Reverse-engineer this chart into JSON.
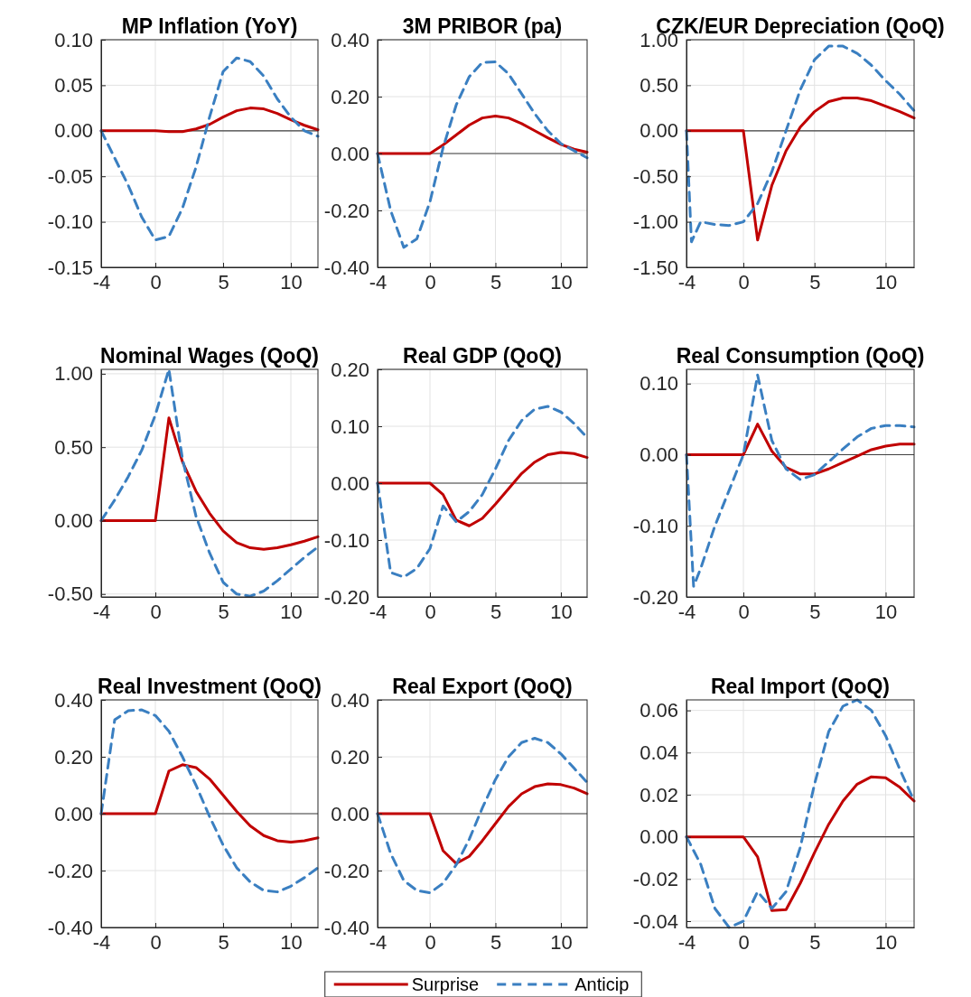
{
  "chart_data": [
    {
      "type": "line",
      "title": "MP Inflation (YoY)",
      "x": [
        -4,
        -3,
        -2,
        -1,
        0,
        1,
        2,
        3,
        4,
        5,
        6,
        7,
        8,
        9,
        10,
        11,
        12
      ],
      "xlim": [
        -4,
        12
      ],
      "xticks": [
        -4,
        0,
        5,
        10
      ],
      "ylim": [
        -0.15,
        0.1
      ],
      "yticks": [
        {
          "value": -0.15,
          "label": "-0.15"
        },
        {
          "value": -0.1,
          "label": "-0.10"
        },
        {
          "value": -0.05,
          "label": "-0.05"
        },
        {
          "value": 0,
          "label": "0.00"
        },
        {
          "value": 0.05,
          "label": "0.05"
        },
        {
          "value": 0.1,
          "label": "0.10"
        }
      ],
      "grid": true,
      "ref_lines": [
        {
          "axis": "y",
          "value": 0,
          "color": "#404040"
        }
      ],
      "series": [
        {
          "color": "#c00000",
          "line_style": "solid",
          "values": [
            0,
            0,
            0,
            0,
            0,
            -0.001,
            -0.001,
            0.002,
            0.007,
            0.015,
            0.022,
            0.025,
            0.024,
            0.019,
            0.012,
            0.006,
            0.001
          ]
        },
        {
          "color": "#3a7fc1",
          "line_style": "dashed",
          "values": [
            0,
            -0.03,
            -0.06,
            -0.095,
            -0.12,
            -0.116,
            -0.085,
            -0.04,
            0.015,
            0.065,
            0.08,
            0.076,
            0.06,
            0.035,
            0.015,
            0,
            -0.006
          ]
        }
      ]
    },
    {
      "type": "line",
      "title": "3M PRIBOR (pa)",
      "x": [
        -4,
        -3,
        -2,
        -1,
        0,
        1,
        2,
        3,
        4,
        5,
        6,
        7,
        8,
        9,
        10,
        11,
        12
      ],
      "xlim": [
        -4,
        12
      ],
      "xticks": [
        -4,
        0,
        5,
        10
      ],
      "ylim": [
        -0.4,
        0.4
      ],
      "yticks": [
        {
          "value": -0.4,
          "label": "-0.40"
        },
        {
          "value": -0.2,
          "label": "-0.20"
        },
        {
          "value": 0,
          "label": "0.00"
        },
        {
          "value": 0.2,
          "label": "0.20"
        },
        {
          "value": 0.4,
          "label": "0.40"
        }
      ],
      "grid": true,
      "ref_lines": [
        {
          "axis": "y",
          "value": 0,
          "color": "#404040"
        }
      ],
      "series": [
        {
          "color": "#c00000",
          "line_style": "solid",
          "values": [
            0,
            0,
            0,
            0,
            0,
            0.03,
            0.065,
            0.1,
            0.125,
            0.132,
            0.125,
            0.105,
            0.08,
            0.055,
            0.032,
            0.015,
            0.005
          ]
        },
        {
          "color": "#3a7fc1",
          "line_style": "dashed",
          "values": [
            0,
            -0.2,
            -0.33,
            -0.3,
            -0.17,
            0.02,
            0.17,
            0.27,
            0.32,
            0.322,
            0.28,
            0.21,
            0.14,
            0.08,
            0.035,
            0.01,
            -0.015
          ]
        }
      ]
    },
    {
      "type": "line",
      "title": "CZK/EUR Depreciation (QoQ)",
      "x": [
        -4,
        -3,
        -2,
        -1,
        0,
        1,
        2,
        3,
        4,
        5,
        6,
        7,
        8,
        9,
        10,
        11,
        12
      ],
      "xlim": [
        -4,
        12
      ],
      "xticks": [
        -4,
        0,
        5,
        10
      ],
      "ylim": [
        -1.5,
        1
      ],
      "yticks": [
        {
          "value": -1.5,
          "label": "-1.50"
        },
        {
          "value": -1,
          "label": "-1.00"
        },
        {
          "value": -0.5,
          "label": "-0.50"
        },
        {
          "value": 0,
          "label": "0.00"
        },
        {
          "value": 0.5,
          "label": "0.50"
        },
        {
          "value": 1,
          "label": "1.00"
        }
      ],
      "grid": true,
      "ref_lines": [
        {
          "axis": "y",
          "value": 0,
          "color": "#404040"
        }
      ],
      "series": [
        {
          "color": "#c00000",
          "line_style": "solid",
          "values": [
            0,
            0,
            0,
            0,
            0,
            -1.2,
            -0.6,
            -0.22,
            0.04,
            0.21,
            0.32,
            0.36,
            0.36,
            0.33,
            0.27,
            0.21,
            0.14
          ]
        },
        {
          "color": "#3a7fc1",
          "line_style": "dashed",
          "x": [
            -4,
            -3.65,
            -3,
            -2,
            -1,
            0,
            1,
            2,
            3,
            4,
            5,
            6,
            7,
            8,
            9,
            10,
            11,
            12
          ],
          "values": [
            0,
            -1.22,
            -1.0,
            -1.03,
            -1.04,
            -1.0,
            -0.8,
            -0.45,
            0,
            0.45,
            0.78,
            0.93,
            0.93,
            0.85,
            0.72,
            0.55,
            0.4,
            0.22
          ]
        }
      ]
    },
    {
      "type": "line",
      "title": "Nominal Wages (QoQ)",
      "x": [
        -4,
        -3,
        -2,
        -1,
        0,
        1,
        2,
        3,
        4,
        5,
        6,
        7,
        8,
        9,
        10,
        11,
        12
      ],
      "xlim": [
        -4,
        12
      ],
      "xticks": [
        -4,
        0,
        5,
        10
      ],
      "ylim": [
        -0.52,
        1.03
      ],
      "yticks": [
        {
          "value": -0.5,
          "label": "-0.50"
        },
        {
          "value": 0,
          "label": "0.00"
        },
        {
          "value": 0.5,
          "label": "0.50"
        },
        {
          "value": 1,
          "label": "1.00"
        }
      ],
      "grid": true,
      "ref_lines": [
        {
          "axis": "y",
          "value": 0,
          "color": "#404040"
        }
      ],
      "series": [
        {
          "color": "#c00000",
          "line_style": "solid",
          "values": [
            0,
            0,
            0,
            0,
            0,
            0.7,
            0.4,
            0.2,
            0.05,
            -0.07,
            -0.15,
            -0.185,
            -0.195,
            -0.185,
            -0.165,
            -0.14,
            -0.11
          ]
        },
        {
          "color": "#3a7fc1",
          "line_style": "dashed",
          "values": [
            0,
            0.14,
            0.3,
            0.48,
            0.72,
            1.03,
            0.42,
            0.03,
            -0.22,
            -0.42,
            -0.5,
            -0.515,
            -0.48,
            -0.41,
            -0.33,
            -0.25,
            -0.18
          ]
        }
      ]
    },
    {
      "type": "line",
      "title": "Real GDP (QoQ)",
      "x": [
        -4,
        -3,
        -2,
        -1,
        0,
        1,
        2,
        3,
        4,
        5,
        6,
        7,
        8,
        9,
        10,
        11,
        12
      ],
      "xlim": [
        -4,
        12
      ],
      "xticks": [
        -4,
        0,
        5,
        10
      ],
      "ylim": [
        -0.2,
        0.2
      ],
      "yticks": [
        {
          "value": -0.2,
          "label": "-0.20"
        },
        {
          "value": -0.1,
          "label": "-0.10"
        },
        {
          "value": 0,
          "label": "0.00"
        },
        {
          "value": 0.1,
          "label": "0.10"
        },
        {
          "value": 0.2,
          "label": "0.20"
        }
      ],
      "grid": true,
      "ref_lines": [
        {
          "axis": "y",
          "value": 0,
          "color": "#404040"
        }
      ],
      "series": [
        {
          "color": "#c00000",
          "line_style": "solid",
          "values": [
            0,
            0,
            0,
            0,
            0,
            -0.02,
            -0.065,
            -0.075,
            -0.062,
            -0.037,
            -0.01,
            0.017,
            0.037,
            0.05,
            0.054,
            0.052,
            0.045
          ]
        },
        {
          "color": "#3a7fc1",
          "line_style": "dashed",
          "values": [
            0,
            -0.157,
            -0.165,
            -0.15,
            -0.115,
            -0.04,
            -0.068,
            -0.05,
            -0.02,
            0.025,
            0.075,
            0.11,
            0.13,
            0.135,
            0.125,
            0.105,
            0.08
          ]
        }
      ]
    },
    {
      "type": "line",
      "title": "Real Consumption (QoQ)",
      "x": [
        -4,
        -3,
        -2,
        -1,
        0,
        1,
        2,
        3,
        4,
        5,
        6,
        7,
        8,
        9,
        10,
        11,
        12
      ],
      "xlim": [
        -4,
        12
      ],
      "xticks": [
        -4,
        0,
        5,
        10
      ],
      "ylim": [
        -0.2,
        0.12
      ],
      "yticks": [
        {
          "value": -0.2,
          "label": "-0.20"
        },
        {
          "value": -0.1,
          "label": "-0.10"
        },
        {
          "value": 0,
          "label": "0.00"
        },
        {
          "value": 0.1,
          "label": "0.10"
        }
      ],
      "grid": true,
      "ref_lines": [
        {
          "axis": "y",
          "value": 0,
          "color": "#404040"
        }
      ],
      "series": [
        {
          "color": "#c00000",
          "line_style": "solid",
          "values": [
            0,
            0,
            0,
            0,
            0,
            0.043,
            0.005,
            -0.018,
            -0.027,
            -0.027,
            -0.02,
            -0.011,
            -0.002,
            0.007,
            0.012,
            0.015,
            0.015
          ]
        },
        {
          "color": "#3a7fc1",
          "line_style": "dashed",
          "x": [
            -4,
            -3.5,
            -3,
            -2,
            -1,
            0,
            1,
            2,
            3,
            4,
            5,
            6,
            7,
            8,
            9,
            10,
            11,
            12
          ],
          "values": [
            0,
            -0.185,
            -0.16,
            -0.1,
            -0.05,
            0,
            0.112,
            0.02,
            -0.02,
            -0.035,
            -0.028,
            -0.01,
            0.008,
            0.025,
            0.037,
            0.041,
            0.041,
            0.039
          ]
        }
      ]
    },
    {
      "type": "line",
      "title": "Real Investment (QoQ)",
      "x": [
        -4,
        -3,
        -2,
        -1,
        0,
        1,
        2,
        3,
        4,
        5,
        6,
        7,
        8,
        9,
        10,
        11,
        12
      ],
      "xlim": [
        -4,
        12
      ],
      "xticks": [
        -4,
        0,
        5,
        10
      ],
      "ylim": [
        -0.4,
        0.4
      ],
      "yticks": [
        {
          "value": -0.4,
          "label": "-0.40"
        },
        {
          "value": -0.2,
          "label": "-0.20"
        },
        {
          "value": 0,
          "label": "0.00"
        },
        {
          "value": 0.2,
          "label": "0.20"
        },
        {
          "value": 0.4,
          "label": "0.40"
        }
      ],
      "grid": true,
      "ref_lines": [
        {
          "axis": "y",
          "value": 0,
          "color": "#404040"
        }
      ],
      "series": [
        {
          "color": "#c00000",
          "line_style": "solid",
          "values": [
            0,
            0,
            0,
            0,
            0,
            0.15,
            0.172,
            0.162,
            0.122,
            0.065,
            0.008,
            -0.043,
            -0.077,
            -0.095,
            -0.1,
            -0.095,
            -0.085
          ]
        },
        {
          "color": "#3a7fc1",
          "line_style": "dashed",
          "values": [
            0,
            0.33,
            0.362,
            0.365,
            0.345,
            0.29,
            0.2,
            0.1,
            -0.01,
            -0.11,
            -0.19,
            -0.24,
            -0.27,
            -0.275,
            -0.255,
            -0.225,
            -0.19
          ]
        }
      ]
    },
    {
      "type": "line",
      "title": "Real Export (QoQ)",
      "x": [
        -4,
        -3,
        -2,
        -1,
        0,
        1,
        2,
        3,
        4,
        5,
        6,
        7,
        8,
        9,
        10,
        11,
        12
      ],
      "xlim": [
        -4,
        12
      ],
      "xticks": [
        -4,
        0,
        5,
        10
      ],
      "ylim": [
        -0.4,
        0.4
      ],
      "yticks": [
        {
          "value": -0.4,
          "label": "-0.40"
        },
        {
          "value": -0.2,
          "label": "-0.20"
        },
        {
          "value": 0,
          "label": "0.00"
        },
        {
          "value": 0.2,
          "label": "0.20"
        },
        {
          "value": 0.4,
          "label": "0.40"
        }
      ],
      "grid": true,
      "legend": "bottom",
      "ref_lines": [
        {
          "axis": "y",
          "value": 0,
          "color": "#404040"
        }
      ],
      "series": [
        {
          "name": "Surprise",
          "color": "#c00000",
          "line_style": "solid",
          "values": [
            0,
            0,
            0,
            0,
            0,
            -0.13,
            -0.175,
            -0.15,
            -0.095,
            -0.035,
            0.025,
            0.07,
            0.095,
            0.105,
            0.102,
            0.09,
            0.07
          ]
        },
        {
          "name": "Anticip",
          "color": "#3a7fc1",
          "line_style": "dashed",
          "values": [
            0,
            -0.14,
            -0.235,
            -0.27,
            -0.278,
            -0.245,
            -0.18,
            -0.09,
            0.02,
            0.12,
            0.2,
            0.25,
            0.265,
            0.25,
            0.21,
            0.16,
            0.11
          ]
        }
      ]
    },
    {
      "type": "line",
      "title": "Real Import (QoQ)",
      "x": [
        -4,
        -3,
        -2,
        -1,
        0,
        1,
        2,
        3,
        4,
        5,
        6,
        7,
        8,
        9,
        10,
        11,
        12
      ],
      "xlim": [
        -4,
        12
      ],
      "xticks": [
        -4,
        0,
        5,
        10
      ],
      "ylim": [
        -0.043,
        0.065
      ],
      "yticks": [
        {
          "value": -0.04,
          "label": "-0.04"
        },
        {
          "value": -0.02,
          "label": "-0.02"
        },
        {
          "value": 0,
          "label": "0.00"
        },
        {
          "value": 0.02,
          "label": "0.02"
        },
        {
          "value": 0.04,
          "label": "0.04"
        },
        {
          "value": 0.06,
          "label": "0.06"
        }
      ],
      "grid": true,
      "ref_lines": [
        {
          "axis": "y",
          "value": 0,
          "color": "#404040"
        }
      ],
      "series": [
        {
          "color": "#c00000",
          "line_style": "solid",
          "values": [
            0,
            0,
            0,
            0,
            0,
            -0.0095,
            -0.035,
            -0.0345,
            -0.022,
            -0.0075,
            0.006,
            0.017,
            0.025,
            0.0285,
            0.028,
            0.0235,
            0.017
          ]
        },
        {
          "color": "#3a7fc1",
          "line_style": "dashed",
          "values": [
            0,
            -0.013,
            -0.034,
            -0.043,
            -0.04,
            -0.026,
            -0.034,
            -0.026,
            -0.005,
            0.025,
            0.05,
            0.062,
            0.065,
            0.06,
            0.048,
            0.032,
            0.017
          ]
        }
      ]
    }
  ]
}
